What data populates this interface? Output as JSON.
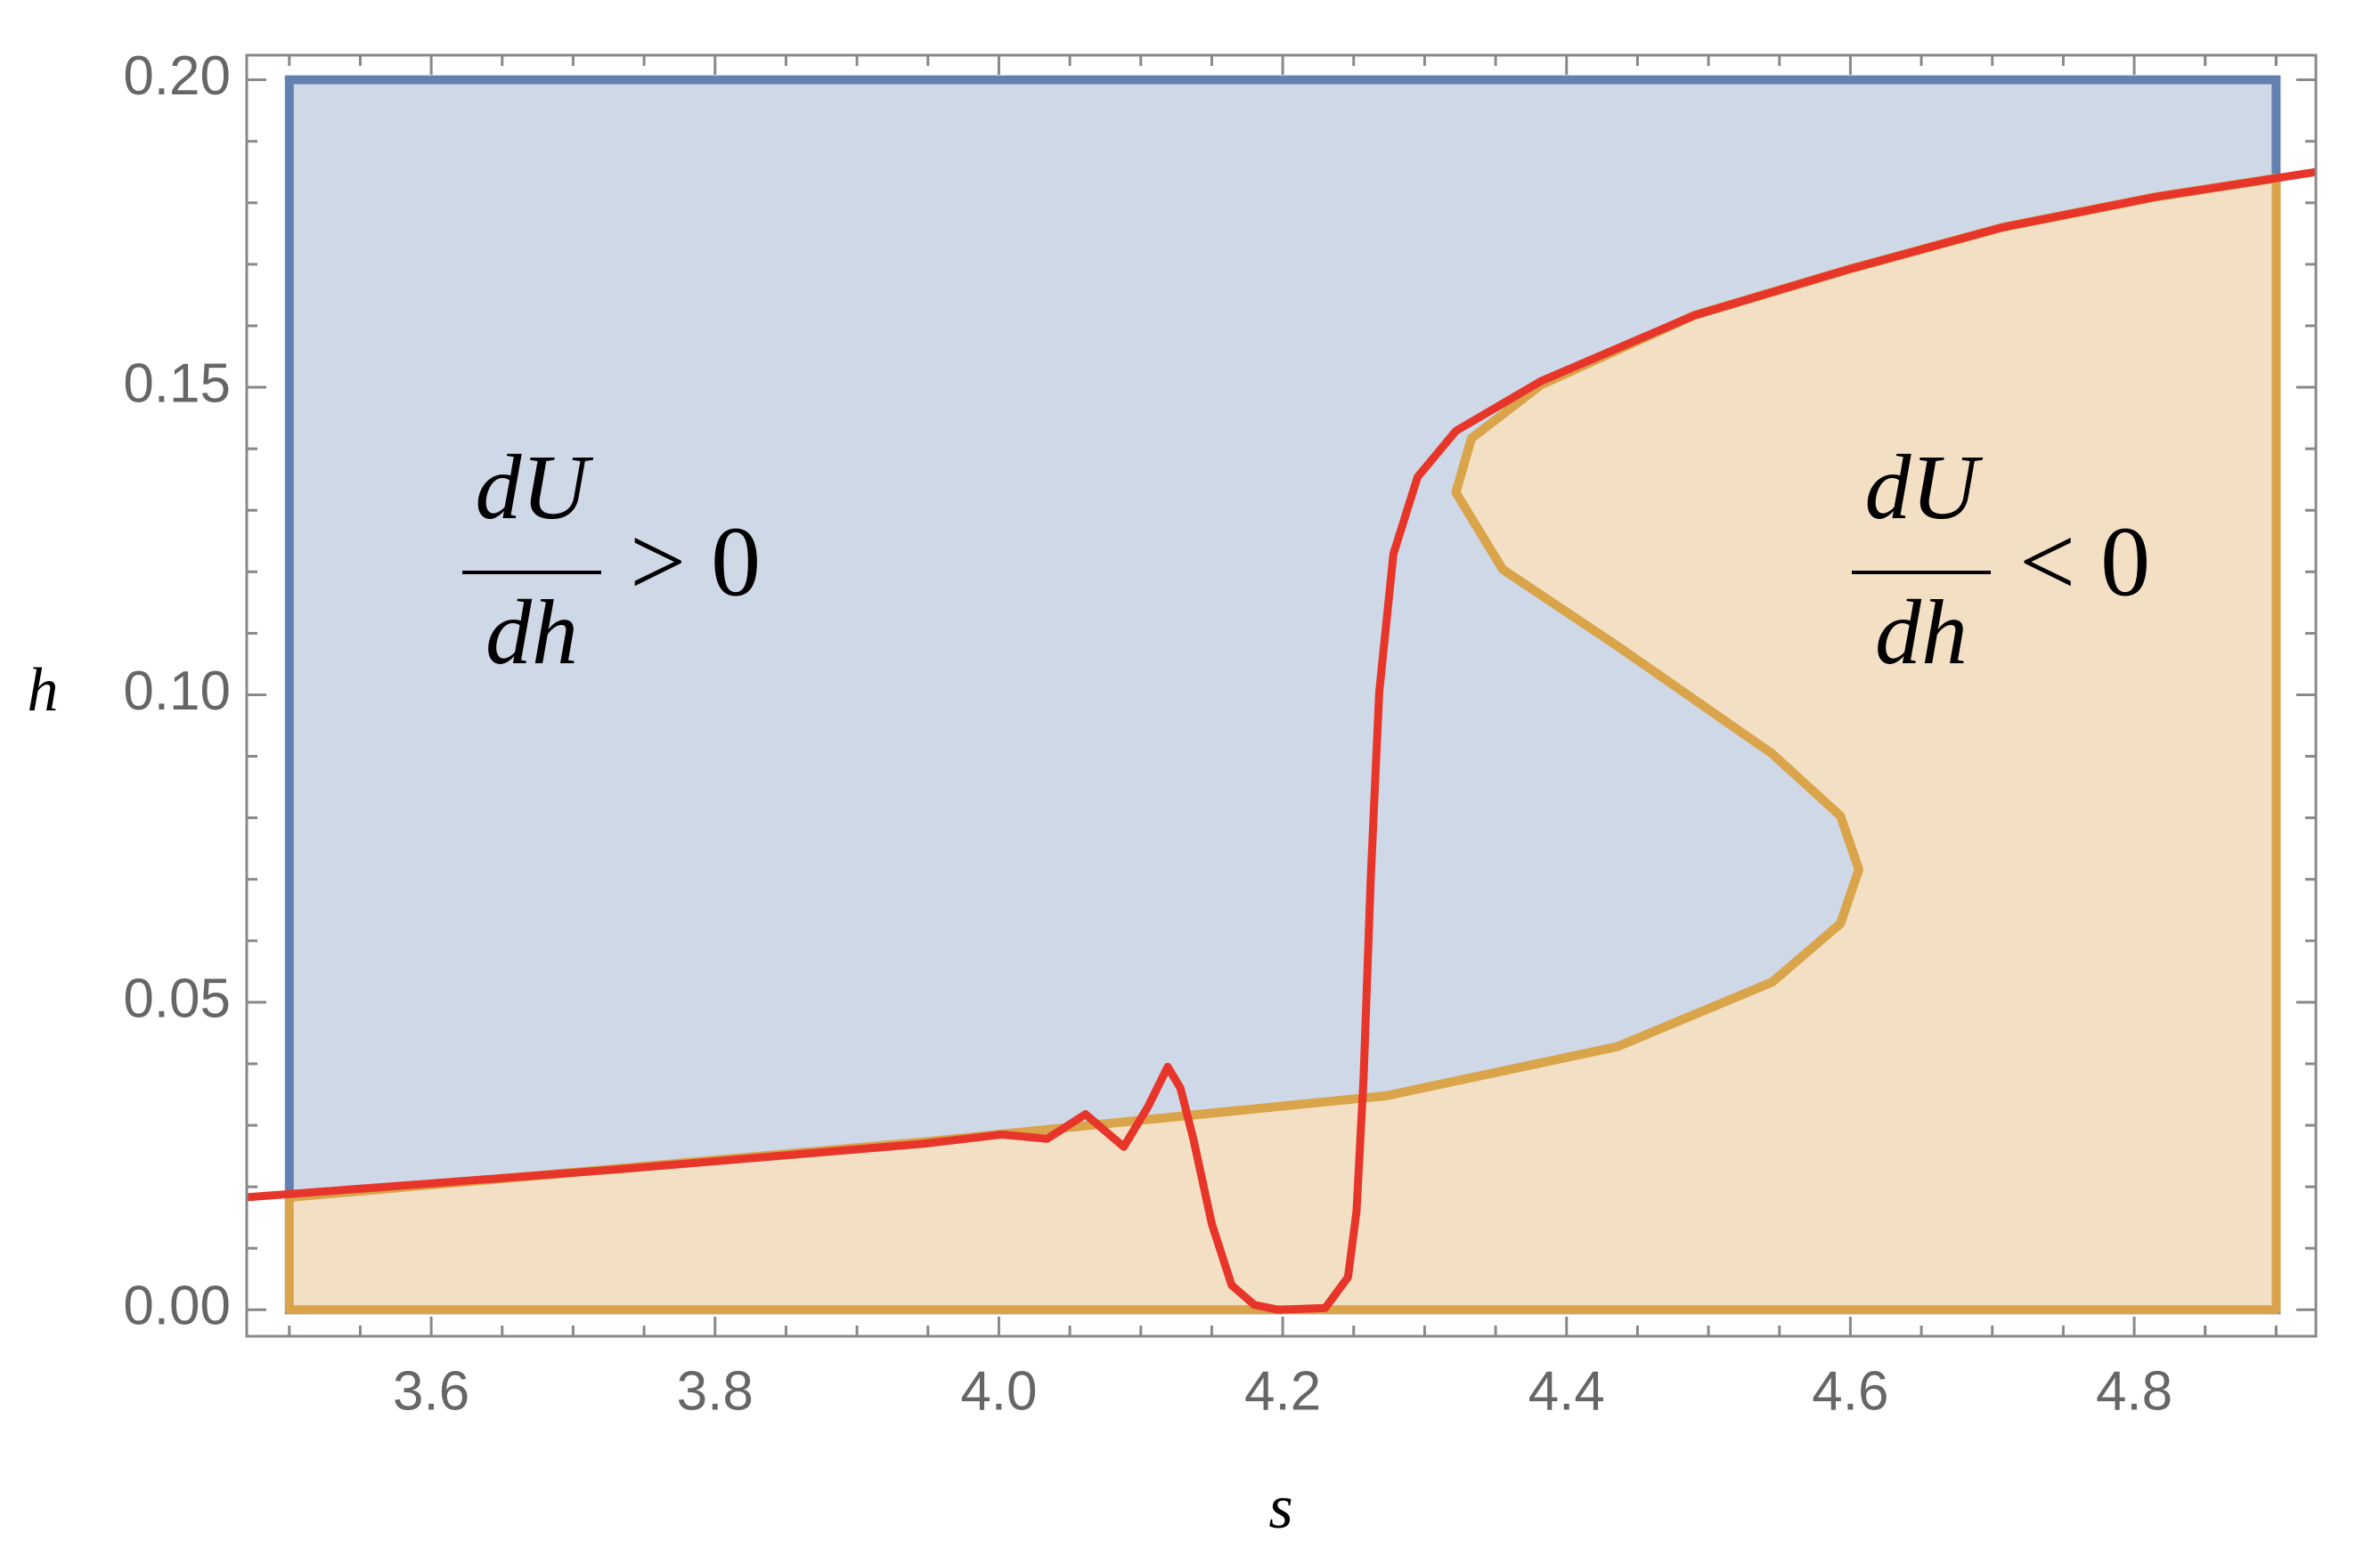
{
  "chart_data": {
    "type": "region",
    "x_label": "s",
    "y_label": "h",
    "xlim": [
      3.47,
      4.928
    ],
    "ylim": [
      -0.0043,
      0.204
    ],
    "xticks": [
      3.6,
      {
        "value": 3.8,
        "label": "3.8"
      },
      {
        "value": 4.0,
        "label": "4.0"
      },
      4.2,
      4.4,
      4.6,
      4.8
    ],
    "yticks": [
      {
        "value": 0,
        "label": "0.00"
      },
      {
        "value": 0.05,
        "label": "0.05"
      },
      {
        "value": 0.1,
        "label": "0.10"
      },
      {
        "value": 0.15,
        "label": "0.15"
      },
      {
        "value": 0.2,
        "label": "0.20"
      }
    ],
    "region_xlim": [
      3.5,
      4.9
    ],
    "region_ylim": [
      0,
      0.2
    ],
    "region_color": "#6381b0",
    "region_fill": "#cfd8e7",
    "boundary_fill": "#f3e0c4",
    "series": [
      {
        "color": "#d9a44a",
        "x": [
          3.5,
          3.947,
          4.273,
          4.436,
          4.545,
          4.593,
          4.606,
          4.593,
          4.545,
          4.436,
          4.355,
          4.322,
          4.333,
          4.382,
          4.49,
          4.599,
          4.707,
          4.816,
          4.9
        ],
        "values": [
          0.0183,
          0.0273,
          0.0348,
          0.0428,
          0.0533,
          0.0628,
          0.0716,
          0.0803,
          0.0904,
          0.1079,
          0.1204,
          0.1329,
          0.1417,
          0.1504,
          0.1617,
          0.1692,
          0.176,
          0.181,
          0.184
        ]
      },
      {
        "color": "#e8352a",
        "x": [
          3.47,
          3.73,
          3.947,
          4.002,
          4.034,
          4.061,
          4.088,
          4.105,
          4.119,
          4.128,
          4.137,
          4.15,
          4.164,
          4.18,
          4.197,
          4.23,
          4.246,
          4.252,
          4.257,
          4.262,
          4.268,
          4.278,
          4.295,
          4.322,
          4.382,
          4.49,
          4.599,
          4.707,
          4.816,
          4.928
        ],
        "values": [
          0.0183,
          0.0228,
          0.027,
          0.0285,
          0.0278,
          0.0318,
          0.0265,
          0.033,
          0.0395,
          0.036,
          0.0278,
          0.014,
          0.004,
          0.0008,
          0,
          0.0003,
          0.0053,
          0.016,
          0.0378,
          0.07,
          0.1004,
          0.1229,
          0.1354,
          0.1429,
          0.151,
          0.1617,
          0.1692,
          0.176,
          0.181,
          0.185
        ]
      }
    ],
    "annotations": [
      {
        "numerator": "dU",
        "denominator": "dh",
        "relation": "> 0"
      },
      {
        "numerator": "dU",
        "denominator": "dh",
        "relation": "< 0"
      }
    ]
  }
}
